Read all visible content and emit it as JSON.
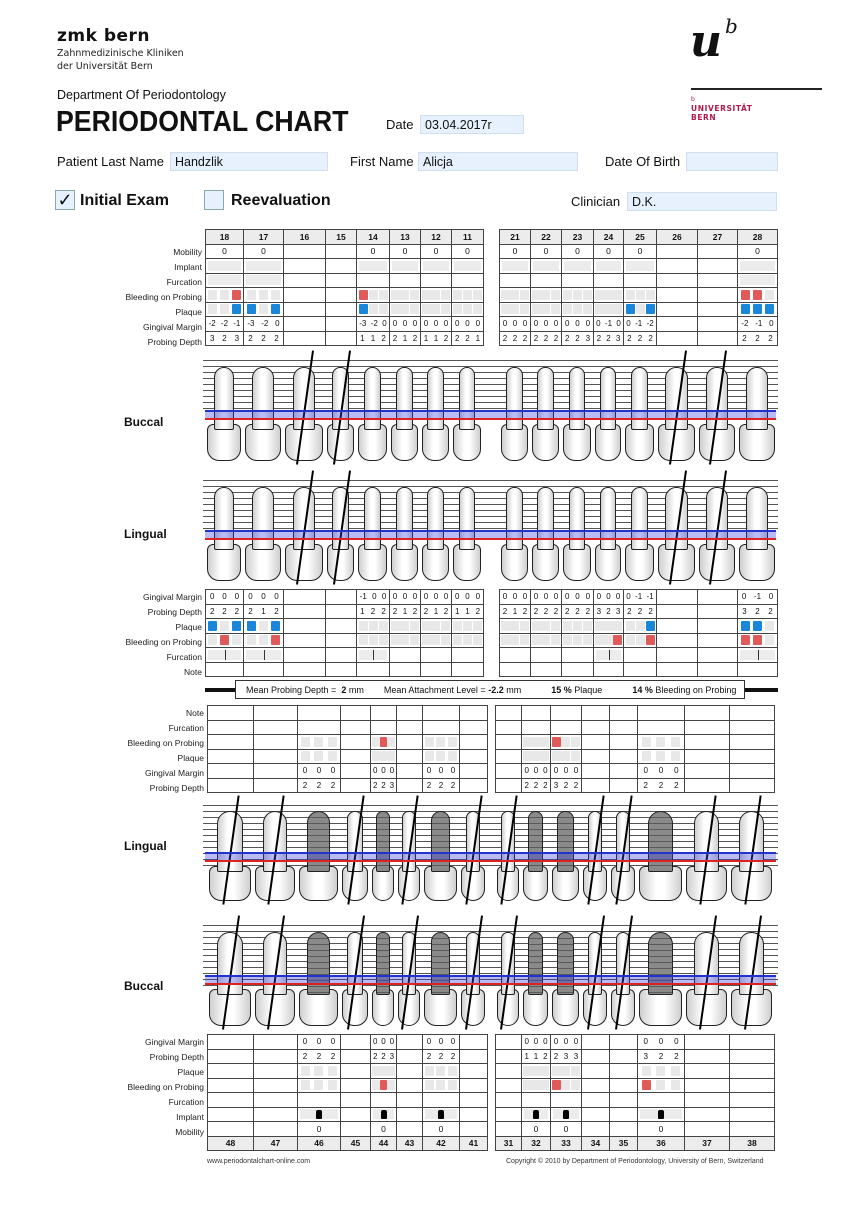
{
  "header": {
    "logo_left": {
      "name": "zmk bern",
      "line1": "Zahnmedizinische Kliniken",
      "line2": "der Universität Bern"
    },
    "logo_right": {
      "mark_u": "u",
      "mark_b": "b",
      "small_b": "b",
      "line1": "UNIVERSITÄT",
      "line2": "BERN"
    },
    "department": "Department Of Periodontology",
    "title": "PERIODONTAL CHART"
  },
  "form": {
    "date_label": "Date",
    "date_value": "03.04.2017r",
    "last_name_label": "Patient Last Name",
    "last_name_value": "Handzlik",
    "first_name_label": "First Name",
    "first_name_value": "Alicja",
    "dob_label": "Date Of Birth",
    "dob_value": "",
    "clinician_label": "Clinician",
    "clinician_value": "D.K.",
    "initial_exam_label": "Initial Exam",
    "initial_exam_checked": "✓",
    "reevaluation_label": "Reevaluation",
    "reevaluation_checked": ""
  },
  "row_labels": {
    "mobility": "Mobility",
    "implant": "Implant",
    "furcation": "Furcation",
    "bleeding": "Bleeding on Probing",
    "plaque": "Plaque",
    "gingival_margin": "Gingival Margin",
    "probing_depth": "Probing Depth",
    "note": "Note"
  },
  "jaw_labels": {
    "buccal": "Buccal",
    "lingual": "Lingual"
  },
  "upper": {
    "right_teeth": [
      "18",
      "17",
      "16",
      "15",
      "14",
      "13",
      "12",
      "11"
    ],
    "left_teeth": [
      "21",
      "22",
      "23",
      "24",
      "25",
      "26",
      "27",
      "28"
    ],
    "buccal": {
      "mobility": [
        "0",
        "0",
        "",
        "",
        "0",
        "0",
        "0",
        "0",
        "0",
        "0",
        "0",
        "0",
        "0",
        "",
        "",
        "0"
      ],
      "gingival_margin": [
        [
          "-2",
          "-2",
          "-1"
        ],
        [
          "-3",
          "-2",
          "0"
        ],
        [],
        [],
        [
          "-3",
          "-2",
          "0"
        ],
        [
          "0",
          "0",
          "0"
        ],
        [
          "0",
          "0",
          "0"
        ],
        [
          "0",
          "0",
          "0"
        ],
        [
          "0",
          "0",
          "0"
        ],
        [
          "0",
          "0",
          "0"
        ],
        [
          "0",
          "0",
          "0"
        ],
        [
          "0",
          "-1",
          "0"
        ],
        [
          "0",
          "-1",
          "-2"
        ],
        [],
        [],
        [
          "-2",
          "-1",
          "0"
        ]
      ],
      "probing_depth": [
        [
          "3",
          "2",
          "3"
        ],
        [
          "2",
          "2",
          "2"
        ],
        [],
        [],
        [
          "1",
          "1",
          "2"
        ],
        [
          "2",
          "1",
          "2"
        ],
        [
          "1",
          "1",
          "2"
        ],
        [
          "2",
          "2",
          "1"
        ],
        [
          "2",
          "2",
          "2"
        ],
        [
          "2",
          "2",
          "2"
        ],
        [
          "2",
          "2",
          "3"
        ],
        [
          "2",
          "2",
          "3"
        ],
        [
          "2",
          "2",
          "2"
        ],
        [],
        [],
        [
          "2",
          "2",
          "2"
        ]
      ],
      "bleeding": [
        "--r",
        "---",
        "",
        "",
        "r--",
        "---",
        "---",
        "---",
        "---",
        "---",
        "---",
        "---",
        "---",
        "",
        "",
        "rr-"
      ],
      "plaque": [
        "--b",
        "b-b",
        "",
        "",
        "b--",
        "---",
        "---",
        "---",
        "---",
        "---",
        "---",
        "---",
        "b-b",
        "",
        "",
        "bbb"
      ]
    },
    "lingual": {
      "gingival_margin": [
        [
          "0",
          "0",
          "0"
        ],
        [
          "0",
          "0",
          "0"
        ],
        [],
        [],
        [
          "-1",
          "0",
          "0"
        ],
        [
          "0",
          "0",
          "0"
        ],
        [
          "0",
          "0",
          "0"
        ],
        [
          "0",
          "0",
          "0"
        ],
        [
          "0",
          "0",
          "0"
        ],
        [
          "0",
          "0",
          "0"
        ],
        [
          "0",
          "0",
          "0"
        ],
        [
          "0",
          "0",
          "0"
        ],
        [
          "0",
          "-1",
          "-1"
        ],
        [],
        [],
        [
          "0",
          "-1",
          "0"
        ]
      ],
      "probing_depth": [
        [
          "2",
          "2",
          "2"
        ],
        [
          "2",
          "1",
          "2"
        ],
        [],
        [],
        [
          "1",
          "2",
          "2"
        ],
        [
          "2",
          "1",
          "2"
        ],
        [
          "2",
          "1",
          "2"
        ],
        [
          "1",
          "1",
          "2"
        ],
        [
          "2",
          "1",
          "2"
        ],
        [
          "2",
          "2",
          "2"
        ],
        [
          "2",
          "2",
          "2"
        ],
        [
          "3",
          "2",
          "3"
        ],
        [
          "2",
          "2",
          "2"
        ],
        [],
        [],
        [
          "3",
          "2",
          "2"
        ]
      ],
      "plaque": [
        "b-b",
        "b-b",
        "",
        "",
        "---",
        "---",
        "---",
        "---",
        "---",
        "---",
        "---",
        "---",
        "--b",
        "",
        "",
        "bb-"
      ],
      "bleeding": [
        "-r-",
        "--r",
        "",
        "",
        "---",
        "---",
        "---",
        "---",
        "---",
        "---",
        "---",
        "--r",
        "--r",
        "",
        "",
        "rr-"
      ]
    }
  },
  "summary": {
    "mean_pd_label": "Mean Probing Depth =",
    "mean_pd_value": "2",
    "mean_pd_unit": "mm",
    "mean_al_label": "Mean Attachment Level =",
    "mean_al_value": "-2.2",
    "mean_al_unit": "mm",
    "plaque_value": "15 %",
    "plaque_label": "Plaque",
    "bop_value": "14 %",
    "bop_label": "Bleeding on Probing"
  },
  "lower": {
    "right_teeth": [
      "48",
      "47",
      "46",
      "45",
      "44",
      "43",
      "42",
      "41"
    ],
    "left_teeth": [
      "31",
      "32",
      "33",
      "34",
      "35",
      "36",
      "37",
      "38"
    ],
    "lingual": {
      "bleeding": [
        "",
        "",
        "---",
        "",
        "-r-",
        "",
        "---",
        "",
        "",
        "---",
        "r--",
        "",
        "",
        "---",
        "",
        ""
      ],
      "plaque": [
        "",
        "",
        "---",
        "",
        "---",
        "",
        "---",
        "",
        "",
        "---",
        "---",
        "",
        "",
        "---",
        "",
        ""
      ],
      "gingival_margin": [
        [],
        [],
        [
          "0",
          "0",
          "0"
        ],
        [],
        [
          "0",
          "0",
          "0"
        ],
        [],
        [
          "0",
          "0",
          "0"
        ],
        [],
        [],
        [
          "0",
          "0",
          "0"
        ],
        [
          "0",
          "0",
          "0"
        ],
        [],
        [],
        [
          "0",
          "0",
          "0"
        ],
        [],
        []
      ],
      "probing_depth": [
        [],
        [],
        [
          "2",
          "2",
          "2"
        ],
        [],
        [
          "2",
          "2",
          "3"
        ],
        [],
        [
          "2",
          "2",
          "2"
        ],
        [],
        [],
        [
          "2",
          "2",
          "2"
        ],
        [
          "3",
          "2",
          "2"
        ],
        [],
        [],
        [
          "2",
          "2",
          "2"
        ],
        [],
        []
      ]
    },
    "buccal": {
      "gingival_margin": [
        [],
        [],
        [
          "0",
          "0",
          "0"
        ],
        [],
        [
          "0",
          "0",
          "0"
        ],
        [],
        [
          "0",
          "0",
          "0"
        ],
        [],
        [],
        [
          "0",
          "0",
          "0"
        ],
        [
          "0",
          "0",
          "0"
        ],
        [],
        [],
        [
          "0",
          "0",
          "0"
        ],
        [],
        []
      ],
      "probing_depth": [
        [],
        [],
        [
          "2",
          "2",
          "2"
        ],
        [],
        [
          "2",
          "2",
          "3"
        ],
        [],
        [
          "2",
          "2",
          "2"
        ],
        [],
        [],
        [
          "1",
          "1",
          "2"
        ],
        [
          "2",
          "3",
          "3"
        ],
        [],
        [],
        [
          "3",
          "2",
          "2"
        ],
        [],
        []
      ],
      "plaque": [
        "",
        "",
        "---",
        "",
        "---",
        "",
        "---",
        "",
        "",
        "---",
        "---",
        "",
        "",
        "---",
        "",
        ""
      ],
      "bleeding": [
        "",
        "",
        "---",
        "",
        "-r-",
        "",
        "---",
        "",
        "",
        "---",
        "r--",
        "",
        "",
        "r--",
        "",
        ""
      ],
      "implant": [
        "",
        "",
        "x",
        "",
        "x",
        "",
        "x",
        "",
        "",
        "x",
        "x",
        "",
        "",
        "x",
        "",
        ""
      ],
      "mobility": [
        "",
        "",
        "0",
        "",
        "0",
        "",
        "0",
        "",
        "",
        "0",
        "0",
        "",
        "",
        "0",
        "",
        ""
      ]
    }
  },
  "footer": {
    "website": "www.periodontalchart-online.com",
    "copyright": "Copyright © 2010 by Department of Periodontology, University of Bern, Switzerland"
  },
  "colors": {
    "bleeding": "#e05a5a",
    "plaque": "#1a86d9",
    "field_bg": "#e6f1fd",
    "brand_red": "#b0174d"
  }
}
